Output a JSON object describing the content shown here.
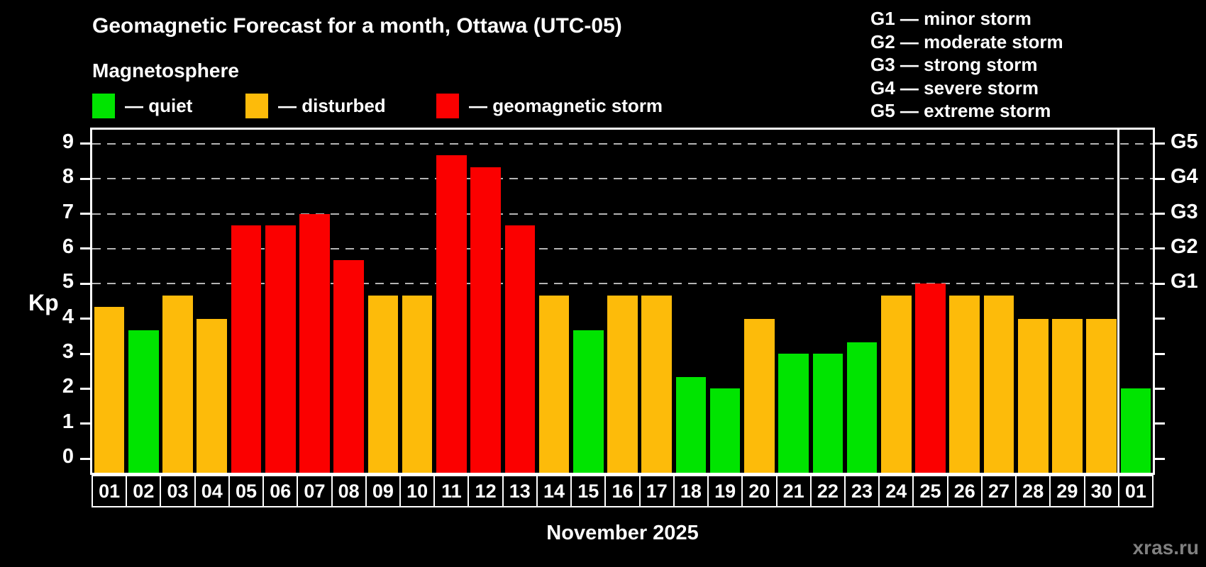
{
  "footer": {
    "watermark": "xras.ru"
  },
  "legend": {
    "items": [
      {
        "level": "quiet",
        "label": "— quiet"
      },
      {
        "level": "disturbed",
        "label": "— disturbed"
      },
      {
        "level": "storm",
        "label": "— geomagnetic storm"
      }
    ]
  },
  "storm_scale": {
    "lines": [
      {
        "code": "G1",
        "label": "G1 — minor storm"
      },
      {
        "code": "G2",
        "label": "G2 — moderate storm"
      },
      {
        "code": "G3",
        "label": "G3 — strong storm"
      },
      {
        "code": "G4",
        "label": "G4 — severe storm"
      },
      {
        "code": "G5",
        "label": "G5 — extreme storm"
      }
    ]
  },
  "chart_data": {
    "type": "bar",
    "title": "Geomagnetic Forecast for a month, Ottawa (UTC-05)",
    "subtitle": "Magnetosphere",
    "ylabel": "Kp",
    "month_caption": "November 2025",
    "ylim": [
      -0.4,
      9.4
    ],
    "yticks": [
      0,
      1,
      2,
      3,
      4,
      5,
      6,
      7,
      8,
      9
    ],
    "gridline_kp": [
      5,
      6,
      7,
      8,
      9
    ],
    "right_axis_labels": [
      {
        "kp": 5,
        "text": "G1"
      },
      {
        "kp": 6,
        "text": "G2"
      },
      {
        "kp": 7,
        "text": "G3"
      },
      {
        "kp": 8,
        "text": "G4"
      },
      {
        "kp": 9,
        "text": "G5"
      }
    ],
    "level_colors": {
      "quiet": "#00e400",
      "disturbed": "#fdbb0a",
      "storm": "#fb0000"
    },
    "grid_on": true,
    "legend_position": "top-left",
    "separator_before_index": 30,
    "days": [
      {
        "label": "01",
        "kp": 4.33,
        "level": "disturbed"
      },
      {
        "label": "02",
        "kp": 3.67,
        "level": "quiet"
      },
      {
        "label": "03",
        "kp": 4.67,
        "level": "disturbed"
      },
      {
        "label": "04",
        "kp": 4.0,
        "level": "disturbed"
      },
      {
        "label": "05",
        "kp": 6.67,
        "level": "storm"
      },
      {
        "label": "06",
        "kp": 6.67,
        "level": "storm"
      },
      {
        "label": "07",
        "kp": 7.0,
        "level": "storm"
      },
      {
        "label": "08",
        "kp": 5.67,
        "level": "storm"
      },
      {
        "label": "09",
        "kp": 4.67,
        "level": "disturbed"
      },
      {
        "label": "10",
        "kp": 4.67,
        "level": "disturbed"
      },
      {
        "label": "11",
        "kp": 8.67,
        "level": "storm"
      },
      {
        "label": "12",
        "kp": 8.33,
        "level": "storm"
      },
      {
        "label": "13",
        "kp": 6.67,
        "level": "storm"
      },
      {
        "label": "14",
        "kp": 4.67,
        "level": "disturbed"
      },
      {
        "label": "15",
        "kp": 3.67,
        "level": "quiet"
      },
      {
        "label": "16",
        "kp": 4.67,
        "level": "disturbed"
      },
      {
        "label": "17",
        "kp": 4.67,
        "level": "disturbed"
      },
      {
        "label": "18",
        "kp": 2.33,
        "level": "quiet"
      },
      {
        "label": "19",
        "kp": 2.0,
        "level": "quiet"
      },
      {
        "label": "20",
        "kp": 4.0,
        "level": "disturbed"
      },
      {
        "label": "21",
        "kp": 3.0,
        "level": "quiet"
      },
      {
        "label": "22",
        "kp": 3.0,
        "level": "quiet"
      },
      {
        "label": "23",
        "kp": 3.33,
        "level": "quiet"
      },
      {
        "label": "24",
        "kp": 4.67,
        "level": "disturbed"
      },
      {
        "label": "25",
        "kp": 5.0,
        "level": "storm"
      },
      {
        "label": "26",
        "kp": 4.67,
        "level": "disturbed"
      },
      {
        "label": "27",
        "kp": 4.67,
        "level": "disturbed"
      },
      {
        "label": "28",
        "kp": 4.0,
        "level": "disturbed"
      },
      {
        "label": "29",
        "kp": 4.0,
        "level": "disturbed"
      },
      {
        "label": "30",
        "kp": 4.0,
        "level": "disturbed"
      },
      {
        "label": "01",
        "kp": 2.0,
        "level": "quiet"
      }
    ]
  }
}
